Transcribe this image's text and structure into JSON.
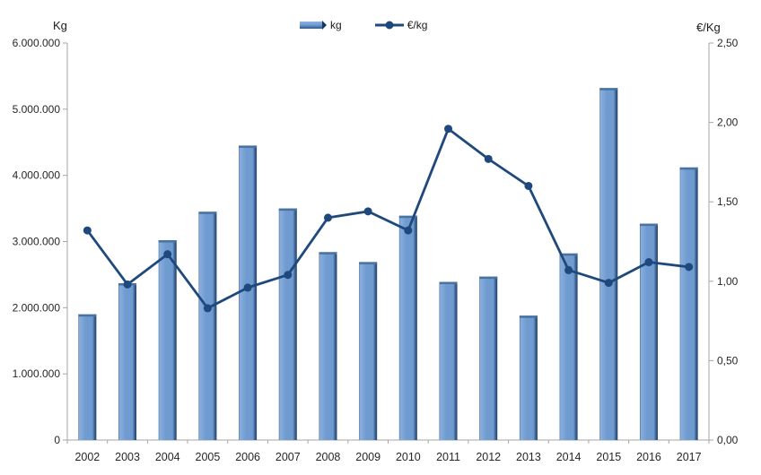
{
  "chart_data": {
    "type": "combo",
    "title": "",
    "categories": [
      "2002",
      "2003",
      "2004",
      "2005",
      "2006",
      "2007",
      "2008",
      "2009",
      "2010",
      "2011",
      "2012",
      "2013",
      "2014",
      "2015",
      "2016",
      "2017"
    ],
    "series": [
      {
        "name": "kg",
        "type": "bar",
        "axis": "left",
        "values": [
          1900000,
          2370000,
          3020000,
          3450000,
          4450000,
          3500000,
          2840000,
          2690000,
          3390000,
          2390000,
          2470000,
          1880000,
          2820000,
          5320000,
          3270000,
          4120000
        ]
      },
      {
        "name": "€/kg",
        "type": "line",
        "axis": "right",
        "values": [
          1.32,
          0.98,
          1.17,
          0.83,
          0.96,
          1.04,
          1.4,
          1.44,
          1.32,
          1.96,
          1.77,
          1.6,
          1.07,
          0.99,
          1.12,
          1.09
        ]
      }
    ],
    "left_axis": {
      "title": "Kg",
      "min": 0,
      "max": 6000000,
      "step": 1000000,
      "tick_labels": [
        "0",
        "1.000.000",
        "2.000.000",
        "3.000.000",
        "4.000.000",
        "5.000.000",
        "6.000.000"
      ]
    },
    "right_axis": {
      "title": "€/Kg",
      "min": 0,
      "max": 2.5,
      "step": 0.5,
      "tick_labels": [
        "0,00",
        "0,50",
        "1,00",
        "1,50",
        "2,00",
        "2,50"
      ]
    },
    "legend": {
      "position": "top",
      "items": [
        "kg",
        "€/kg"
      ]
    },
    "grid": false,
    "colors": {
      "bar_body": "#6F9BD0",
      "bar_highlight": "#8AAEDD",
      "bar_shadow": "#20406A",
      "bar_cap": "#4A729F",
      "line": "#1F497D",
      "axis": "#A6A6A6",
      "text": "#262626"
    }
  }
}
